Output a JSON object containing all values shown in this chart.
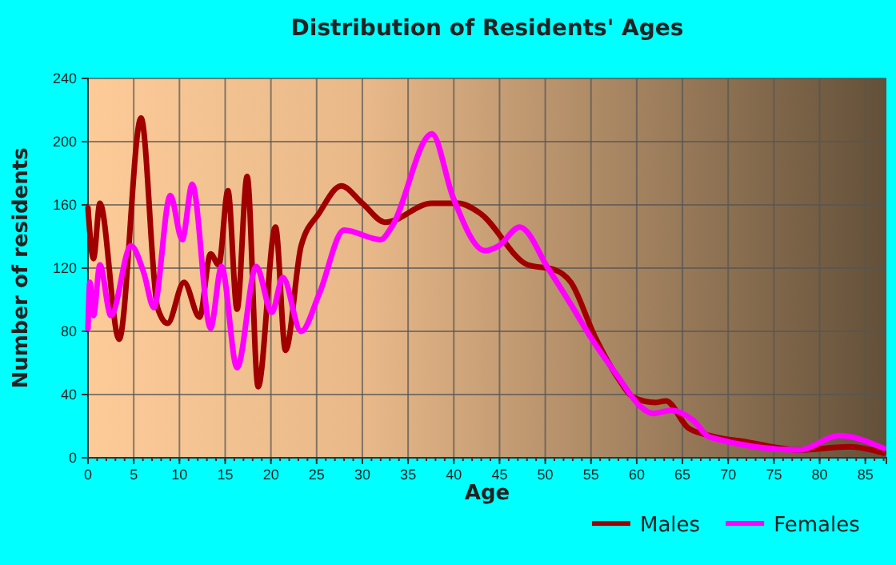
{
  "chart_data": {
    "type": "line",
    "title": "Distribution of Residents' Ages",
    "xlabel": "Age",
    "ylabel": "Number of residents",
    "xlim": [
      0,
      87.3
    ],
    "xticks": [
      0,
      5,
      10,
      15,
      20,
      25,
      30,
      35,
      40,
      45,
      50,
      55,
      60,
      65,
      70,
      75,
      80,
      85
    ],
    "ylim": [
      0,
      240
    ],
    "yticks": [
      0,
      40,
      80,
      120,
      160,
      200,
      240
    ],
    "grid": true,
    "legend": "bottom",
    "line_style": "solid",
    "marker": "none",
    "series": [
      {
        "name": "Males",
        "color": "#a00000",
        "x": [
          0,
          0.6,
          1.3,
          3.4,
          5.8,
          7.6,
          8.7,
          10.5,
          12.2,
          13.4,
          14.3,
          15.3,
          16.3,
          17.4,
          18.6,
          20.5,
          21.6,
          23.3,
          25.3,
          27.7,
          30,
          32.5,
          37.6,
          40.5,
          42.8,
          48.1,
          51,
          52.8,
          55.4,
          58,
          59.7,
          62.1,
          63.2,
          65.6,
          68,
          72,
          77.8,
          83.3,
          87
        ],
        "values": [
          158,
          126,
          161,
          75,
          215,
          95,
          85,
          111,
          89,
          129,
          122,
          169,
          94,
          178,
          45,
          146,
          68,
          134,
          155,
          172,
          161,
          149,
          161,
          161,
          155,
          122,
          119,
          111,
          77,
          50,
          38,
          35,
          36,
          19,
          14,
          10,
          5,
          7,
          3
        ]
      },
      {
        "name": "Females",
        "color": "#ff00ff",
        "x": [
          0,
          0.2,
          0.6,
          1.3,
          2.5,
          4.7,
          6.1,
          7.2,
          9,
          10.3,
          11.4,
          13.4,
          14.6,
          16.3,
          18.4,
          20.1,
          21.3,
          23.3,
          25.3,
          28,
          32,
          33.2,
          37.6,
          39.9,
          43.4,
          44.9,
          47.2,
          50.4,
          52.8,
          55.1,
          58,
          60.3,
          61.8,
          63.8,
          66.1,
          68,
          77.8,
          82.1,
          87
        ],
        "values": [
          82,
          111,
          90,
          122,
          90,
          134,
          117,
          95,
          166,
          138,
          173,
          82,
          121,
          57,
          121,
          92,
          114,
          80,
          104,
          144,
          138,
          146,
          205,
          165,
          131,
          134,
          146,
          119,
          97,
          75,
          51,
          33,
          28,
          30,
          24,
          13,
          5,
          14,
          6
        ]
      }
    ]
  }
}
